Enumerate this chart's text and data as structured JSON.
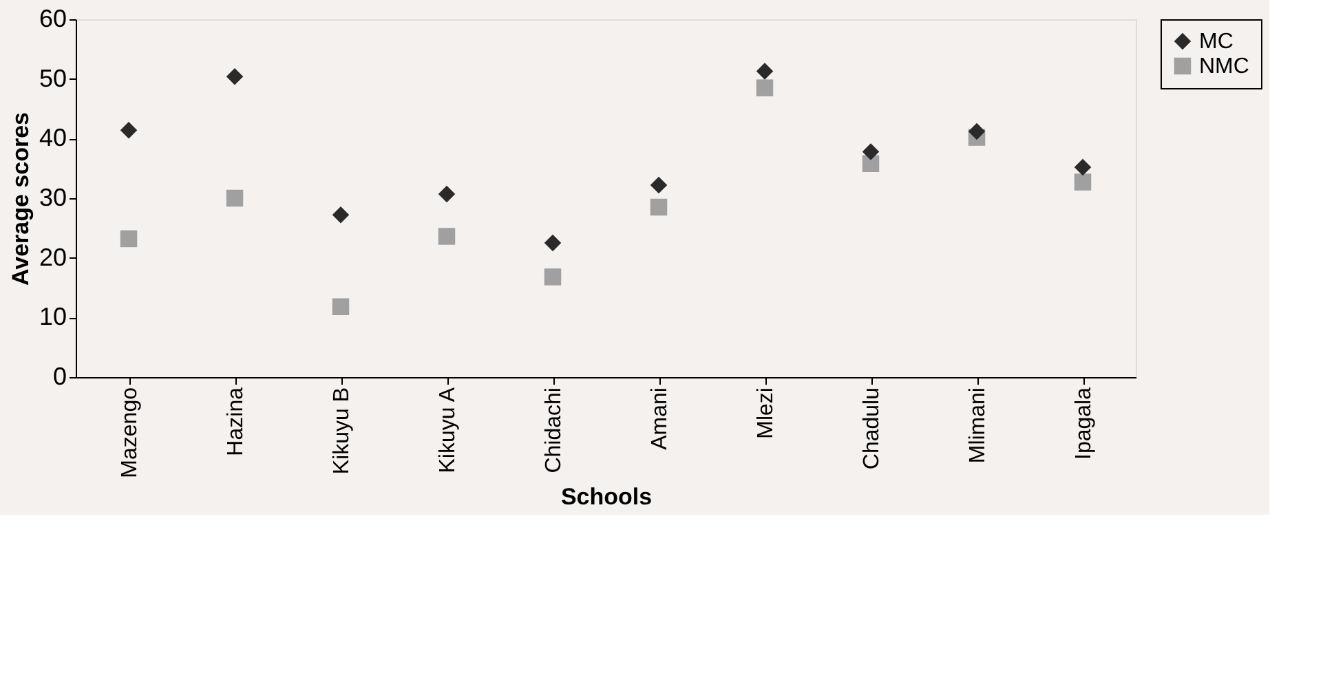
{
  "chart_data": {
    "type": "scatter",
    "xlabel": "Schools",
    "ylabel": "Average scores",
    "categories": [
      "Mazengo",
      "Hazina",
      "Kikuyu B",
      "Kikuyu A",
      "Chidachi",
      "Amani",
      "Mlezi",
      "Chadulu",
      "Mlimani",
      "Ipagala"
    ],
    "series": [
      {
        "name": "MC",
        "color": "#2a2a2a",
        "marker": "diamond",
        "values": [
          41.4,
          50.4,
          27.2,
          30.7,
          22.5,
          32.2,
          51.3,
          37.8,
          41.2,
          35.2
        ]
      },
      {
        "name": "NMC",
        "color": "#a0a0a0",
        "marker": "square",
        "values": [
          23.2,
          30.0,
          11.8,
          23.6,
          16.8,
          28.5,
          48.5,
          35.8,
          40.2,
          32.7
        ]
      }
    ],
    "ylim": [
      0,
      60
    ],
    "yticks": [
      0,
      10,
      20,
      30,
      40,
      50,
      60
    ],
    "grid": false,
    "legend": "right"
  }
}
